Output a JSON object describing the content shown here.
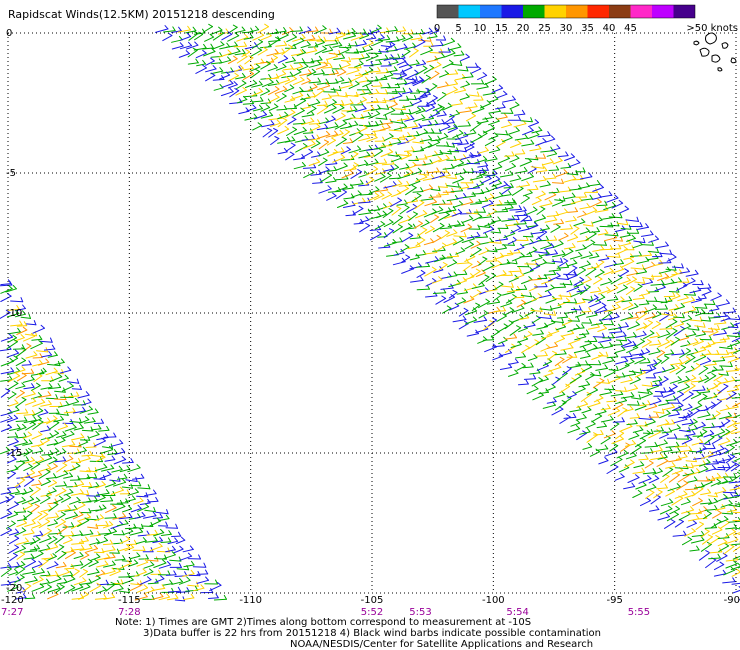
{
  "title": "Rapidscat Winds(12.5KM) 20151218 descending",
  "legend": {
    "unit_label": ">50 knots",
    "bins": [
      {
        "color": "#555555",
        "label": "0"
      },
      {
        "color": "#00c8ff",
        "label": "5"
      },
      {
        "color": "#1e78ff",
        "label": "10"
      },
      {
        "color": "#1a1ae6",
        "label": "15"
      },
      {
        "color": "#00aa00",
        "label": "20"
      },
      {
        "color": "#ffd200",
        "label": "25"
      },
      {
        "color": "#ff9600",
        "label": "30"
      },
      {
        "color": "#ff2800",
        "label": "35"
      },
      {
        "color": "#8b3c14",
        "label": "40"
      },
      {
        "color": "#ff28c8",
        "label": "45"
      },
      {
        "color": "#be00ff",
        "label": ""
      },
      {
        "color": "#46008c",
        "label": ""
      }
    ]
  },
  "map": {
    "lon_range": [
      -120,
      -90
    ],
    "lat_range": [
      -20,
      0
    ],
    "lon_ticks": [
      {
        "value": -120,
        "label": "-120"
      },
      {
        "value": -115,
        "label": "-115"
      },
      {
        "value": -110,
        "label": "-110"
      },
      {
        "value": -105,
        "label": "-105"
      },
      {
        "value": -100,
        "label": "-100"
      },
      {
        "value": -95,
        "label": "-95"
      },
      {
        "value": -90,
        "label": "-90"
      }
    ],
    "lat_ticks": [
      {
        "value": 0,
        "label": "0"
      },
      {
        "value": -5,
        "label": "-5"
      },
      {
        "value": -10,
        "label": "-10"
      },
      {
        "value": -15,
        "label": "-15"
      },
      {
        "value": -20,
        "label": "-20"
      }
    ]
  },
  "pass_times": [
    {
      "lon": -120,
      "label": "7:27"
    },
    {
      "lon": -115,
      "label": "7:28"
    },
    {
      "lon": -105,
      "label": "5:52"
    },
    {
      "lon": -103,
      "label": "5:53"
    },
    {
      "lon": -99,
      "label": "5:54"
    },
    {
      "lon": -94,
      "label": "5:55"
    }
  ],
  "notes": [
    "Note: 1) Times are GMT 2)Times along bottom correspond to measurement at -10S",
    "3)Data buffer is 22 hrs from 20151218 4) Black wind barbs indicate possible contamination",
    "NOAA/NESDIS/Center for Satellite Applications and Research"
  ],
  "colors": {
    "time_label": "#990099",
    "grid": "#000000"
  }
}
